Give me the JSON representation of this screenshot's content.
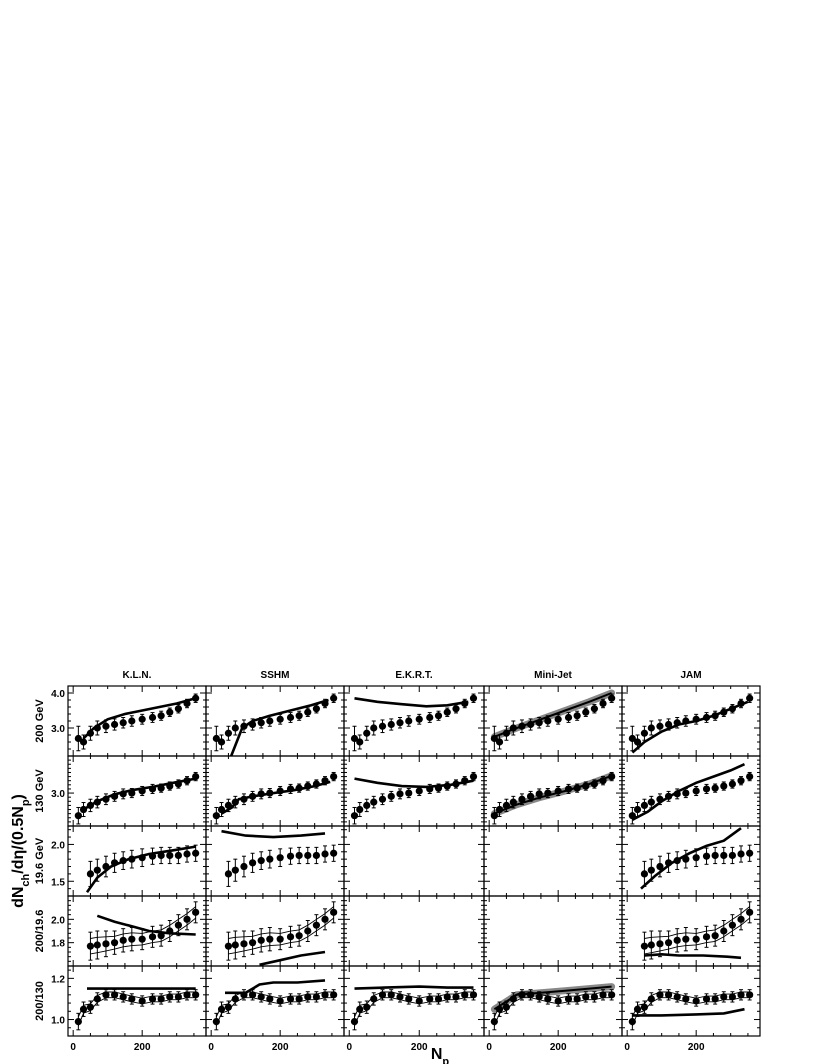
{
  "figure": {
    "ylabel": "dN_ch/dη/(0.5N_p)",
    "xlabel": "N_p",
    "columns": [
      "K.L.N.",
      "SSHM",
      "E.K.R.T.",
      "Mini-Jet",
      "JAM"
    ],
    "rows": [
      "200 GeV",
      "130 GeV",
      "19.6 GeV",
      "200/19.6",
      "200/130"
    ]
  },
  "chart_data": {
    "type": "scatter",
    "title": "",
    "xlabel": "N_p",
    "ylabel": "dN_ch/dη/(0.5N_p)",
    "xlim": [
      -15,
      385
    ],
    "xticks": [
      0,
      200
    ],
    "x": [
      15,
      30,
      50,
      70,
      95,
      120,
      145,
      170,
      200,
      230,
      255,
      280,
      305,
      330,
      355
    ],
    "panels": [
      {
        "row": "200 GeV",
        "ylim": [
          2.2,
          4.2
        ],
        "yticks": [
          3.0,
          4.0
        ],
        "data": [
          2.7,
          2.6,
          2.85,
          3.0,
          3.05,
          3.1,
          3.15,
          3.2,
          3.25,
          3.3,
          3.35,
          3.45,
          3.55,
          3.7,
          3.85
        ],
        "err": [
          0.35,
          0.2,
          0.2,
          0.2,
          0.18,
          0.16,
          0.15,
          0.15,
          0.14,
          0.14,
          0.13,
          0.12,
          0.12,
          0.12,
          0.12
        ],
        "models": {
          "K.L.N.": [
            [
              30,
              2.7
            ],
            [
              60,
              3.0
            ],
            [
              100,
              3.25
            ],
            [
              150,
              3.4
            ],
            [
              200,
              3.5
            ],
            [
              250,
              3.6
            ],
            [
              300,
              3.7
            ],
            [
              355,
              3.85
            ]
          ],
          "SSHM": [
            [
              50,
              2.0
            ],
            [
              70,
              2.5
            ],
            [
              90,
              3.0
            ],
            [
              120,
              3.2
            ],
            [
              170,
              3.35
            ],
            [
              230,
              3.5
            ],
            [
              290,
              3.65
            ],
            [
              340,
              3.8
            ]
          ],
          "E.K.R.T.": [
            [
              15,
              3.85
            ],
            [
              80,
              3.75
            ],
            [
              150,
              3.68
            ],
            [
              220,
              3.62
            ],
            [
              280,
              3.65
            ],
            [
              340,
              3.75
            ]
          ],
          "Mini-Jet": [
            [
              15,
              2.75
            ],
            [
              80,
              3.0
            ],
            [
              150,
              3.25
            ],
            [
              220,
              3.5
            ],
            [
              290,
              3.75
            ],
            [
              355,
              4.0
            ]
          ],
          "JAM": [
            [
              15,
              2.3
            ],
            [
              50,
              2.6
            ],
            [
              100,
              2.9
            ],
            [
              150,
              3.1
            ],
            [
              200,
              3.2
            ],
            [
              250,
              3.35
            ],
            [
              300,
              3.55
            ],
            [
              350,
              3.75
            ]
          ]
        }
      },
      {
        "row": "130 GeV",
        "ylim": [
          2.2,
          3.9
        ],
        "yticks": [
          3.0
        ],
        "data": [
          2.45,
          2.6,
          2.7,
          2.78,
          2.85,
          2.92,
          2.98,
          3.0,
          3.05,
          3.1,
          3.12,
          3.17,
          3.22,
          3.3,
          3.4
        ],
        "err": [
          0.2,
          0.17,
          0.15,
          0.14,
          0.13,
          0.12,
          0.12,
          0.11,
          0.11,
          0.11,
          0.1,
          0.1,
          0.1,
          0.1,
          0.1
        ],
        "models": {
          "K.L.N.": [
            [
              30,
              2.6
            ],
            [
              70,
              2.8
            ],
            [
              120,
              2.97
            ],
            [
              170,
              3.07
            ],
            [
              230,
              3.15
            ],
            [
              290,
              3.25
            ],
            [
              355,
              3.35
            ]
          ],
          "SSHM": [
            [
              30,
              2.5
            ],
            [
              60,
              2.65
            ],
            [
              80,
              2.85
            ],
            [
              120,
              2.92
            ],
            [
              180,
              3.0
            ],
            [
              240,
              3.07
            ],
            [
              300,
              3.17
            ],
            [
              345,
              3.27
            ]
          ],
          "E.K.R.T.": [
            [
              15,
              3.35
            ],
            [
              80,
              3.25
            ],
            [
              150,
              3.17
            ],
            [
              220,
              3.15
            ],
            [
              290,
              3.2
            ],
            [
              355,
              3.3
            ]
          ],
          "Mini-Jet": [
            [
              15,
              2.5
            ],
            [
              80,
              2.72
            ],
            [
              150,
              2.9
            ],
            [
              220,
              3.05
            ],
            [
              290,
              3.22
            ],
            [
              355,
              3.42
            ]
          ],
          "JAM": [
            [
              15,
              2.35
            ],
            [
              60,
              2.55
            ],
            [
              100,
              2.8
            ],
            [
              150,
              3.05
            ],
            [
              200,
              3.25
            ],
            [
              250,
              3.4
            ],
            [
              300,
              3.55
            ],
            [
              340,
              3.7
            ]
          ]
        }
      },
      {
        "row": "19.6 GeV",
        "ylim": [
          1.3,
          2.25
        ],
        "yticks": [
          1.5,
          2.0
        ],
        "data": [
          null,
          null,
          1.6,
          1.65,
          1.7,
          1.75,
          1.78,
          1.8,
          1.82,
          1.84,
          1.85,
          1.85,
          1.85,
          1.87,
          1.88
        ],
        "err": [
          0,
          0,
          0.17,
          0.15,
          0.14,
          0.13,
          0.12,
          0.12,
          0.12,
          0.11,
          0.11,
          0.11,
          0.11,
          0.11,
          0.11
        ],
        "models": {
          "K.L.N.": [
            [
              40,
              1.35
            ],
            [
              70,
              1.55
            ],
            [
              110,
              1.7
            ],
            [
              160,
              1.8
            ],
            [
              220,
              1.87
            ],
            [
              290,
              1.92
            ],
            [
              355,
              1.97
            ]
          ],
          "SSHM": [
            [
              30,
              2.18
            ],
            [
              100,
              2.12
            ],
            [
              180,
              2.1
            ],
            [
              260,
              2.12
            ],
            [
              330,
              2.15
            ]
          ],
          "JAM": [
            [
              40,
              1.4
            ],
            [
              80,
              1.57
            ],
            [
              130,
              1.75
            ],
            [
              180,
              1.88
            ],
            [
              230,
              1.98
            ],
            [
              280,
              2.05
            ],
            [
              330,
              2.22
            ]
          ]
        }
      },
      {
        "row": "200/19.6",
        "ylim": [
          1.6,
          2.2
        ],
        "yticks": [
          1.8,
          2.0
        ],
        "data": [
          null,
          null,
          1.77,
          1.78,
          1.79,
          1.8,
          1.82,
          1.83,
          1.83,
          1.85,
          1.86,
          1.9,
          1.95,
          2.0,
          2.06
        ],
        "err": [
          0,
          0,
          0.12,
          0.12,
          0.11,
          0.1,
          0.1,
          0.1,
          0.09,
          0.09,
          0.09,
          0.09,
          0.09,
          0.09,
          0.09
        ],
        "models": {
          "K.L.N.": [
            [
              70,
              2.03
            ],
            [
              120,
              1.98
            ],
            [
              170,
              1.94
            ],
            [
              220,
              1.9
            ],
            [
              280,
              1.88
            ],
            [
              355,
              1.87
            ]
          ],
          "SSHM": [
            [
              140,
              1.61
            ],
            [
              200,
              1.65
            ],
            [
              260,
              1.69
            ],
            [
              330,
              1.72
            ]
          ],
          "JAM": [
            [
              50,
              1.69
            ],
            [
              100,
              1.7
            ],
            [
              150,
              1.69
            ],
            [
              220,
              1.69
            ],
            [
              290,
              1.68
            ],
            [
              330,
              1.67
            ]
          ]
        }
      },
      {
        "row": "200/130",
        "ylim": [
          0.92,
          1.26
        ],
        "yticks": [
          1.0,
          1.2
        ],
        "data": [
          0.99,
          1.05,
          1.06,
          1.1,
          1.12,
          1.12,
          1.11,
          1.1,
          1.09,
          1.1,
          1.1,
          1.11,
          1.11,
          1.12,
          1.12
        ],
        "err": [
          0.04,
          0.035,
          0.03,
          0.03,
          0.025,
          0.025,
          0.025,
          0.025,
          0.025,
          0.025,
          0.025,
          0.025,
          0.025,
          0.025,
          0.025
        ],
        "models": {
          "K.L.N.": [
            [
              40,
              1.15
            ],
            [
              120,
              1.15
            ],
            [
              200,
              1.15
            ],
            [
              280,
              1.15
            ],
            [
              355,
              1.15
            ]
          ],
          "SSHM": [
            [
              40,
              1.13
            ],
            [
              100,
              1.13
            ],
            [
              140,
              1.17
            ],
            [
              180,
              1.18
            ],
            [
              250,
              1.18
            ],
            [
              330,
              1.19
            ]
          ],
          "E.K.R.T.": [
            [
              15,
              1.15
            ],
            [
              100,
              1.155
            ],
            [
              200,
              1.16
            ],
            [
              280,
              1.155
            ],
            [
              355,
              1.155
            ]
          ],
          "Mini-Jet": [
            [
              15,
              1.05
            ],
            [
              80,
              1.12
            ],
            [
              150,
              1.13
            ],
            [
              220,
              1.14
            ],
            [
              290,
              1.15
            ],
            [
              355,
              1.16
            ]
          ],
          "JAM": [
            [
              15,
              1.02
            ],
            [
              100,
              1.02
            ],
            [
              200,
              1.025
            ],
            [
              280,
              1.03
            ],
            [
              340,
              1.05
            ]
          ]
        }
      }
    ]
  }
}
